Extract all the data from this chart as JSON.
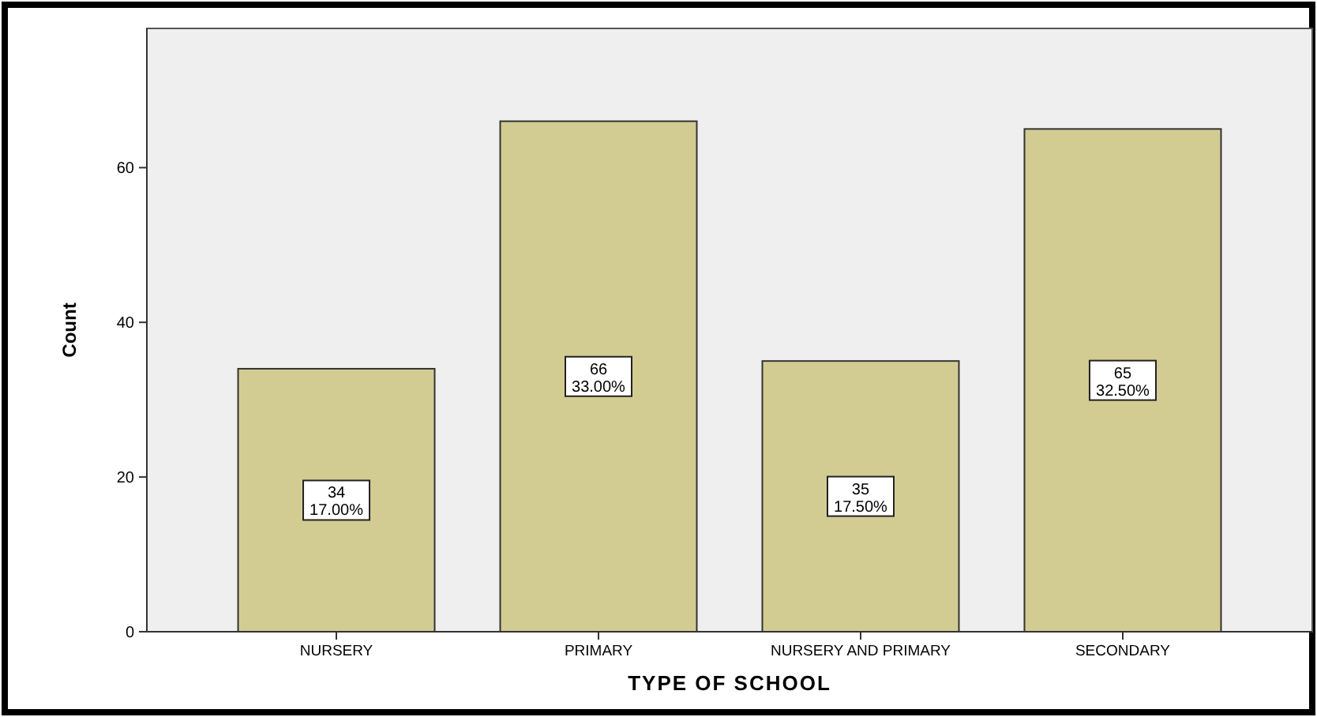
{
  "chart_data": {
    "type": "bar",
    "xlabel": "TYPE OF SCHOOL",
    "ylabel": "Count",
    "categories": [
      "NURSERY",
      "PRIMARY",
      "NURSERY AND PRIMARY",
      "SECONDARY"
    ],
    "values": [
      34,
      66,
      35,
      65
    ],
    "value_labels": [
      "34\n17.00%",
      "66\n33.00%",
      "35\n17.50%",
      "65\n32.50%"
    ],
    "color": "#d3cc92",
    "ylim": [
      0,
      78
    ],
    "yticks": [
      0,
      20,
      40,
      60
    ]
  }
}
